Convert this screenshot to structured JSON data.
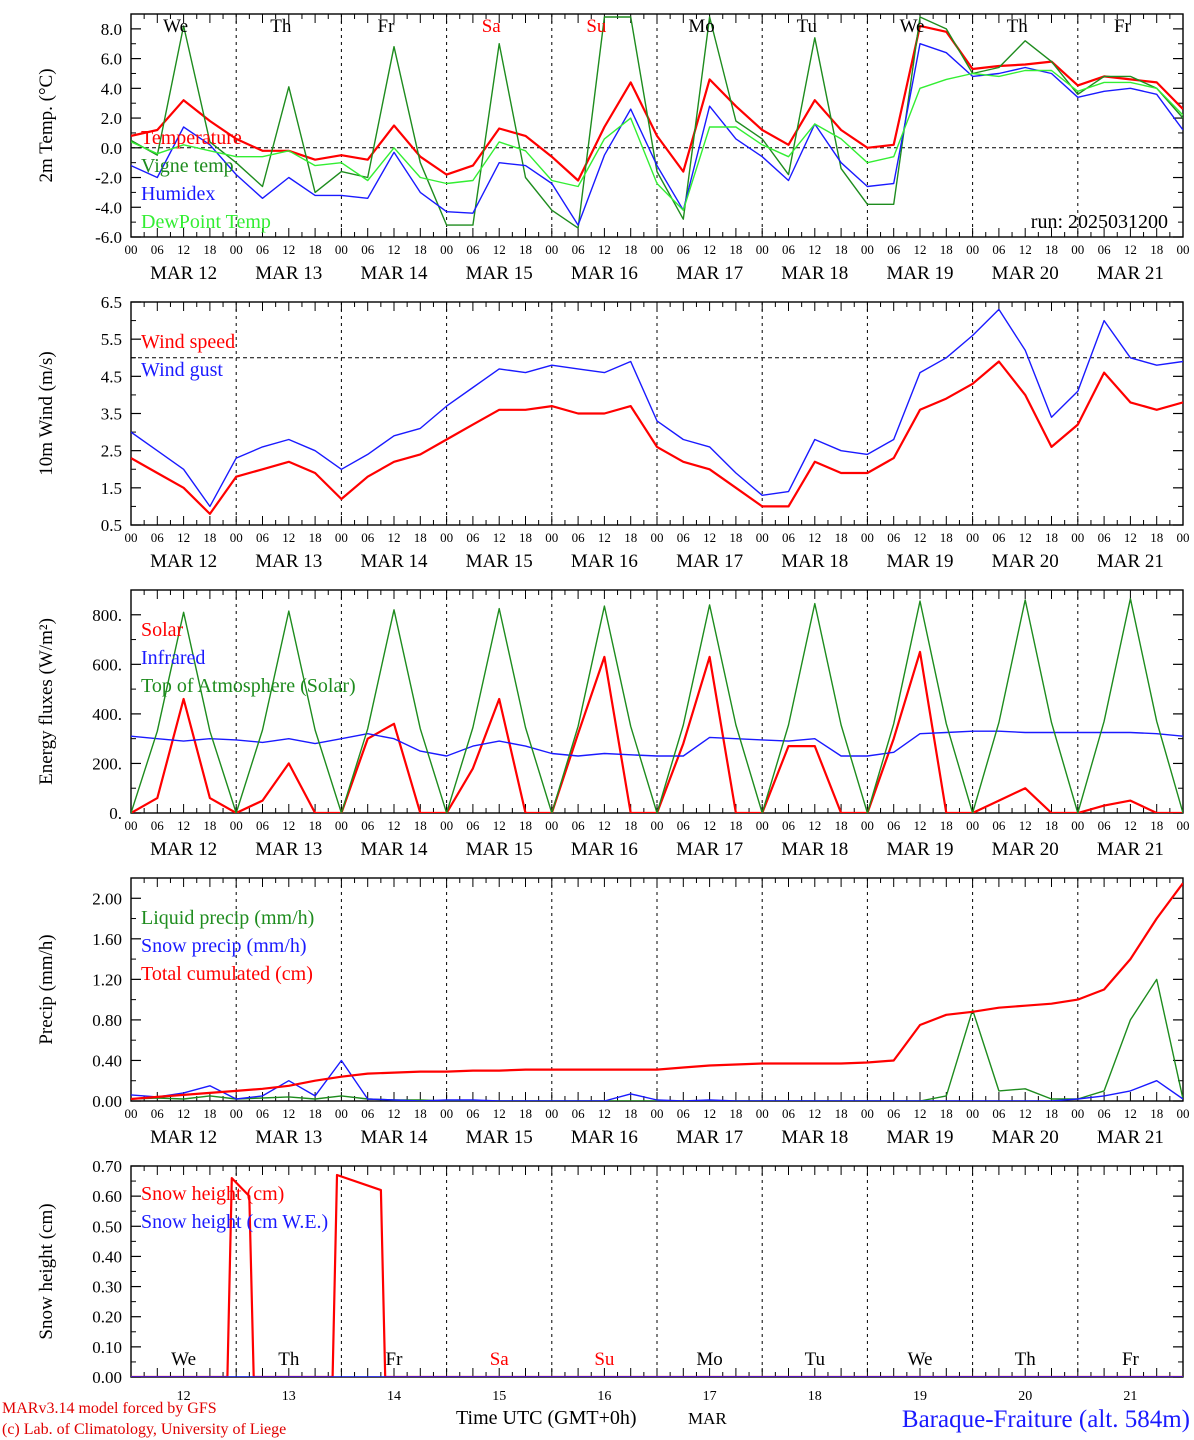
{
  "footer": {
    "credit_line1": "MARv3.14 model forced by GFS",
    "credit_line2": "(c) Lab. of Climatology, University of Liege",
    "x_title": "Time UTC (GMT+0h)",
    "month": "MAR",
    "station": "Baraque-Fraiture (alt. 584m)"
  },
  "colors": {
    "red": "#ff0000",
    "blue": "#1a1aff",
    "green": "#1e8c1e",
    "lightgreen": "#33ee33",
    "black": "#000000"
  },
  "days": {
    "names": [
      "We",
      "Th",
      "Fr",
      "Sa",
      "Su",
      "Mo",
      "Tu",
      "We",
      "Th",
      "Fr"
    ],
    "weekend": [
      false,
      false,
      false,
      true,
      true,
      false,
      false,
      false,
      false,
      false
    ],
    "dates": [
      "MAR 12",
      "MAR 13",
      "MAR 14",
      "MAR 15",
      "MAR 16",
      "MAR 17",
      "MAR 18",
      "MAR 19",
      "MAR 20",
      "MAR 21"
    ],
    "numbers": [
      "12",
      "13",
      "14",
      "15",
      "16",
      "17",
      "18",
      "19",
      "20",
      "21"
    ],
    "hour_ticks": [
      "00",
      "06",
      "12",
      "18"
    ],
    "last_tick": "00"
  },
  "chart_data": [
    {
      "type": "line",
      "ylabel": "2m Temp. (°C)",
      "annotation": "run: 2025031200",
      "ylim": [
        -6,
        9
      ],
      "yticks": [
        "-6.0",
        "-4.0",
        "-2.0",
        "0.0",
        "2.0",
        "4.0",
        "6.0",
        "8.0"
      ],
      "reference_line": 0,
      "x": [
        0,
        6,
        12,
        18,
        24,
        30,
        36,
        42,
        48,
        54,
        60,
        66,
        72,
        78,
        84,
        90,
        96,
        102,
        108,
        114,
        120,
        126,
        132,
        138,
        144,
        150,
        156,
        162,
        168,
        174,
        180,
        186,
        192,
        198,
        204,
        210,
        216,
        222,
        228,
        234,
        240
      ],
      "series": [
        {
          "name": "Temperature",
          "color": "red",
          "values": [
            0.8,
            1.2,
            3.2,
            1.8,
            0.6,
            -0.2,
            -0.2,
            -0.8,
            -0.5,
            -0.8,
            1.5,
            -0.6,
            -1.8,
            -1.2,
            1.3,
            0.8,
            -0.6,
            -2.2,
            1.4,
            4.4,
            0.8,
            -1.6,
            4.6,
            2.8,
            1.2,
            0.2,
            3.2,
            1.2,
            0.0,
            0.2,
            8.2,
            7.8,
            5.3,
            5.5,
            5.6,
            5.8,
            4.2,
            4.8,
            4.6,
            4.4,
            2.6
          ]
        },
        {
          "name": "Vigne temp",
          "color": "green",
          "values": [
            0.5,
            -0.5,
            8.2,
            0.4,
            -1.0,
            -2.6,
            4.1,
            -3.0,
            -1.6,
            -2.0,
            6.8,
            -1.0,
            -5.2,
            -5.2,
            7.0,
            -2.0,
            -4.2,
            -5.4,
            8.8,
            8.8,
            -1.6,
            -4.8,
            8.8,
            1.8,
            0.6,
            -1.8,
            7.4,
            -1.4,
            -3.8,
            -3.8,
            8.8,
            8.0,
            5.0,
            5.4,
            7.2,
            5.8,
            3.6,
            4.8,
            4.8,
            4.0,
            2.0
          ]
        },
        {
          "name": "Humidex",
          "color": "blue",
          "values": [
            -1.2,
            -2.0,
            1.4,
            0.2,
            -1.8,
            -3.4,
            -2.0,
            -3.2,
            -3.2,
            -3.4,
            -0.3,
            -3.0,
            -4.3,
            -4.4,
            -1.0,
            -1.2,
            -2.4,
            -5.2,
            -0.5,
            2.6,
            -1.2,
            -4.2,
            2.8,
            0.6,
            -0.6,
            -2.2,
            1.6,
            -1.0,
            -2.6,
            -2.4,
            7.0,
            6.4,
            4.8,
            5.0,
            5.4,
            5.0,
            3.4,
            3.8,
            4.0,
            3.6,
            1.2
          ]
        },
        {
          "name": "DewPoint Temp",
          "color": "lightgreen",
          "values": [
            0.4,
            -0.4,
            0.2,
            -0.2,
            -0.6,
            -0.6,
            -0.2,
            -1.2,
            -1.0,
            -2.2,
            0.0,
            -2.0,
            -2.4,
            -2.2,
            0.4,
            -0.2,
            -2.2,
            -2.6,
            0.6,
            2.0,
            -2.4,
            -4.2,
            1.4,
            1.4,
            0.2,
            -0.6,
            1.6,
            0.6,
            -1.0,
            -0.6,
            4.0,
            4.6,
            5.0,
            4.8,
            5.2,
            5.2,
            3.8,
            4.4,
            4.4,
            4.0,
            2.2
          ]
        }
      ]
    },
    {
      "type": "line",
      "ylabel": "10m Wind (m/s)",
      "ylim": [
        0.5,
        6.5
      ],
      "yticks": [
        "0.5",
        "1.5",
        "2.5",
        "3.5",
        "4.5",
        "5.5",
        "6.5"
      ],
      "reference_line": 5,
      "x": [
        0,
        6,
        12,
        18,
        24,
        30,
        36,
        42,
        48,
        54,
        60,
        66,
        72,
        78,
        84,
        90,
        96,
        102,
        108,
        114,
        120,
        126,
        132,
        138,
        144,
        150,
        156,
        162,
        168,
        174,
        180,
        186,
        192,
        198,
        204,
        210,
        216,
        222,
        228,
        234,
        240
      ],
      "series": [
        {
          "name": "Wind speed",
          "color": "red",
          "values": [
            2.3,
            1.9,
            1.5,
            0.8,
            1.8,
            2.0,
            2.2,
            1.9,
            1.2,
            1.8,
            2.2,
            2.4,
            2.8,
            3.2,
            3.6,
            3.6,
            3.7,
            3.5,
            3.5,
            3.7,
            2.6,
            2.2,
            2.0,
            1.5,
            1.0,
            1.0,
            2.2,
            1.9,
            1.9,
            2.3,
            3.6,
            3.9,
            4.3,
            4.9,
            4.0,
            2.6,
            3.2,
            4.6,
            3.8,
            3.6,
            3.8
          ]
        },
        {
          "name": "Wind gust",
          "color": "blue",
          "values": [
            3.0,
            2.5,
            2.0,
            1.0,
            2.3,
            2.6,
            2.8,
            2.5,
            2.0,
            2.4,
            2.9,
            3.1,
            3.7,
            4.2,
            4.7,
            4.6,
            4.8,
            4.7,
            4.6,
            4.9,
            3.3,
            2.8,
            2.6,
            1.9,
            1.3,
            1.4,
            2.8,
            2.5,
            2.4,
            2.8,
            4.6,
            5.0,
            5.6,
            6.3,
            5.2,
            3.4,
            4.1,
            6.0,
            5.0,
            4.8,
            4.9
          ]
        }
      ]
    },
    {
      "type": "line",
      "ylabel": "Energy fluxes (W/m²)",
      "ylim": [
        0,
        900
      ],
      "yticks": [
        "0.",
        "200.",
        "400.",
        "600.",
        "800."
      ],
      "x": [
        0,
        6,
        12,
        18,
        24,
        30,
        36,
        42,
        48,
        54,
        60,
        66,
        72,
        78,
        84,
        90,
        96,
        102,
        108,
        114,
        120,
        126,
        132,
        138,
        144,
        150,
        156,
        162,
        168,
        174,
        180,
        186,
        192,
        198,
        204,
        210,
        216,
        222,
        228,
        234,
        240
      ],
      "series": [
        {
          "name": "Solar",
          "color": "red",
          "values": [
            0,
            60,
            460,
            60,
            0,
            50,
            200,
            0,
            0,
            300,
            360,
            0,
            0,
            180,
            460,
            0,
            0,
            320,
            630,
            0,
            0,
            280,
            630,
            0,
            0,
            270,
            270,
            0,
            0,
            300,
            650,
            0,
            0,
            50,
            100,
            0,
            0,
            30,
            50,
            0,
            0
          ]
        },
        {
          "name": "Infrared",
          "color": "blue",
          "values": [
            310,
            300,
            290,
            300,
            295,
            285,
            300,
            280,
            300,
            320,
            300,
            250,
            230,
            270,
            290,
            270,
            240,
            230,
            240,
            235,
            230,
            230,
            305,
            300,
            295,
            290,
            300,
            230,
            230,
            245,
            320,
            325,
            330,
            330,
            325,
            325,
            325,
            325,
            325,
            320,
            310
          ]
        },
        {
          "name": "Top of Atmosphere (Solar)",
          "color": "green",
          "values": [
            0,
            330,
            810,
            330,
            0,
            335,
            815,
            335,
            0,
            340,
            820,
            340,
            0,
            345,
            825,
            345,
            0,
            350,
            835,
            350,
            0,
            355,
            840,
            355,
            0,
            355,
            845,
            355,
            0,
            360,
            855,
            360,
            0,
            365,
            860,
            365,
            0,
            370,
            865,
            370,
            0
          ]
        }
      ]
    },
    {
      "type": "line",
      "ylabel": "Precip (mm/h)",
      "ylim": [
        0,
        2.2
      ],
      "yticks": [
        "0.00",
        "0.40",
        "0.80",
        "1.20",
        "1.60",
        "2.00"
      ],
      "x": [
        0,
        6,
        12,
        18,
        24,
        30,
        36,
        42,
        48,
        54,
        60,
        66,
        72,
        78,
        84,
        90,
        96,
        102,
        108,
        114,
        120,
        126,
        132,
        138,
        144,
        150,
        156,
        162,
        168,
        174,
        180,
        186,
        192,
        198,
        204,
        210,
        216,
        222,
        228,
        234,
        240
      ],
      "series": [
        {
          "name": "Liquid precip (mm/h)",
          "color": "green",
          "values": [
            0.02,
            0.03,
            0.02,
            0.05,
            0.02,
            0.03,
            0.04,
            0.02,
            0.05,
            0.02,
            0.01,
            0.01,
            0.0,
            0.0,
            0.0,
            0.0,
            0.0,
            0.0,
            0.0,
            0.0,
            0.0,
            0.0,
            0.0,
            0.0,
            0.0,
            0.0,
            0.0,
            0.0,
            0.0,
            0.0,
            0.0,
            0.05,
            0.9,
            0.1,
            0.12,
            0.02,
            0.02,
            0.1,
            0.8,
            1.2,
            0.02
          ]
        },
        {
          "name": "Snow precip (mm/h)",
          "color": "blue",
          "values": [
            0.06,
            0.04,
            0.08,
            0.15,
            0.02,
            0.05,
            0.2,
            0.05,
            0.4,
            0.02,
            0.01,
            0.0,
            0.01,
            0.01,
            0.0,
            0.0,
            0.0,
            0.0,
            0.0,
            0.07,
            0.01,
            0.0,
            0.01,
            0.0,
            0.0,
            0.0,
            0.0,
            0.0,
            0.0,
            0.0,
            0.0,
            0.0,
            0.0,
            0.0,
            0.0,
            0.0,
            0.02,
            0.05,
            0.1,
            0.2,
            0.02
          ]
        },
        {
          "name": "Total cumulated (cm)",
          "color": "red",
          "values": [
            0.02,
            0.04,
            0.06,
            0.08,
            0.1,
            0.12,
            0.15,
            0.2,
            0.24,
            0.27,
            0.28,
            0.29,
            0.29,
            0.3,
            0.3,
            0.31,
            0.31,
            0.31,
            0.31,
            0.31,
            0.31,
            0.33,
            0.35,
            0.36,
            0.37,
            0.37,
            0.37,
            0.37,
            0.38,
            0.4,
            0.75,
            0.85,
            0.88,
            0.92,
            0.94,
            0.96,
            1.0,
            1.1,
            1.4,
            1.8,
            2.15
          ]
        }
      ]
    },
    {
      "type": "line",
      "ylabel": "Snow height (cm)",
      "ylim": [
        0,
        0.7
      ],
      "yticks": [
        "0.00",
        "0.10",
        "0.20",
        "0.30",
        "0.40",
        "0.50",
        "0.60",
        "0.70"
      ],
      "x": [
        0,
        22,
        23,
        27,
        28,
        46,
        47,
        57,
        58,
        240
      ],
      "series": [
        {
          "name": "Snow height (cm)",
          "color": "red",
          "values": [
            0,
            0,
            0.66,
            0.6,
            0,
            0,
            0.67,
            0.62,
            0,
            0
          ]
        },
        {
          "name": "Snow height (cm W.E.)",
          "color": "blue",
          "values": [
            0,
            0,
            0,
            0,
            0,
            0,
            0,
            0,
            0,
            0
          ]
        }
      ]
    }
  ]
}
